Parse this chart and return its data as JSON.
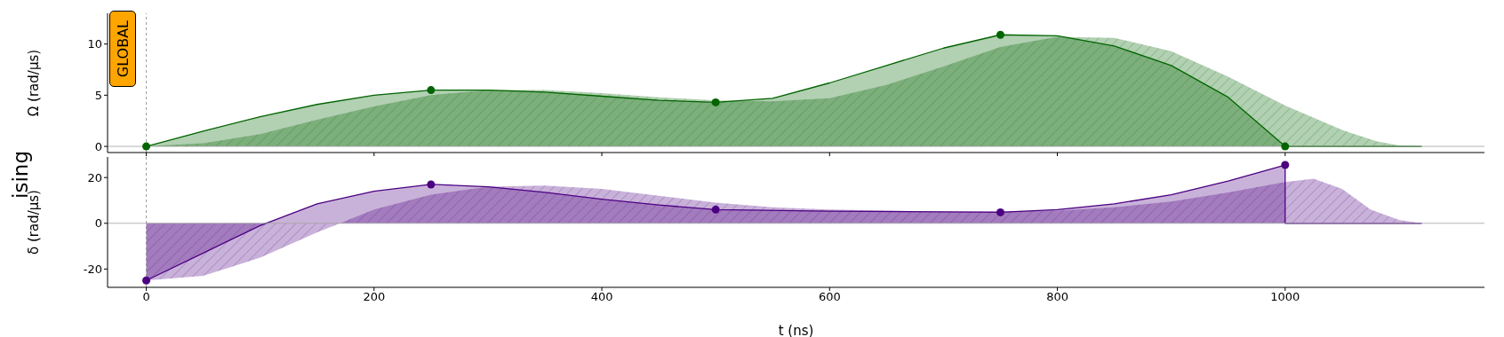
{
  "chart_data": [
    {
      "type": "area",
      "ylabel": "Ω (rad/µs)",
      "annotations": [
        "ising",
        "GLOBAL"
      ],
      "xlim": [
        -34,
        1175
      ],
      "xticks": [
        0,
        200,
        400,
        600,
        800,
        1000
      ],
      "ylim": [
        -0.6,
        13
      ],
      "yticks": [
        0,
        5,
        10
      ],
      "tick_labels": "y",
      "grid": false,
      "legend": false,
      "ref_lines": [
        {
          "axis": "x",
          "value": 0,
          "color": "#808080",
          "line_style": "dashed"
        },
        {
          "axis": "y",
          "value": 0,
          "color": "#a0a0a0",
          "line_style": "solid"
        }
      ],
      "series": [
        {
          "color": "#006400",
          "x": [
            0,
            50,
            100,
            150,
            200,
            250,
            300,
            350,
            400,
            450,
            500,
            550,
            600,
            650,
            700,
            750,
            800,
            850,
            900,
            950,
            1000,
            1120
          ],
          "values": [
            0,
            1.5,
            2.9,
            4.1,
            5.0,
            5.5,
            5.5,
            5.3,
            4.9,
            4.5,
            4.3,
            4.7,
            6.2,
            7.9,
            9.6,
            10.9,
            10.8,
            9.8,
            7.9,
            4.8,
            0,
            0
          ]
        },
        {
          "color": "#006400",
          "x": [
            0,
            50,
            100,
            150,
            200,
            250,
            300,
            350,
            400,
            450,
            500,
            550,
            600,
            650,
            700,
            750,
            800,
            850,
            900,
            950,
            1000,
            1050,
            1080,
            1100,
            1120
          ],
          "values": [
            0,
            0.3,
            1.2,
            2.6,
            3.9,
            5.0,
            5.5,
            5.5,
            5.2,
            4.8,
            4.5,
            4.4,
            4.7,
            6.0,
            7.8,
            9.7,
            10.7,
            10.6,
            9.3,
            6.8,
            4.0,
            1.6,
            0.5,
            0.1,
            0
          ]
        },
        {
          "type": "scatter",
          "color": "#006400",
          "marker": "circle",
          "x": [
            0,
            250,
            500,
            750,
            1000
          ],
          "values": [
            0,
            5.5,
            4.3,
            10.9,
            0
          ]
        }
      ]
    },
    {
      "type": "area",
      "ylabel": "δ (rad/µs)",
      "xlabel": "t (ns)",
      "xlim": [
        -34,
        1175
      ],
      "xticks": [
        0,
        200,
        400,
        600,
        800,
        1000
      ],
      "ylim": [
        -28,
        29
      ],
      "yticks": [
        -20,
        0,
        20
      ],
      "grid": false,
      "legend": false,
      "ref_lines": [
        {
          "axis": "x",
          "value": 0,
          "color": "#808080",
          "line_style": "dashed"
        },
        {
          "axis": "y",
          "value": 0,
          "color": "#a0a0a0",
          "line_style": "solid"
        }
      ],
      "series": [
        {
          "color": "#4b0082",
          "x": [
            0,
            50,
            100,
            150,
            200,
            250,
            300,
            350,
            400,
            450,
            500,
            600,
            700,
            750,
            800,
            850,
            900,
            950,
            1000,
            1000,
            1120
          ],
          "values": [
            -25,
            -13,
            -1,
            8.5,
            14,
            17,
            16,
            13.5,
            10.5,
            8,
            6,
            5.3,
            5,
            4.8,
            6,
            8.5,
            12.5,
            18.5,
            25.5,
            0,
            0
          ]
        },
        {
          "color": "#4b0082",
          "x": [
            0,
            50,
            100,
            150,
            200,
            250,
            300,
            350,
            400,
            450,
            500,
            550,
            600,
            700,
            800,
            850,
            900,
            950,
            1000,
            1025,
            1050,
            1075,
            1100,
            1120
          ],
          "values": [
            -25,
            -23,
            -15,
            -4,
            6,
            12.5,
            16,
            16.5,
            15,
            12,
            9,
            7,
            6,
            5.2,
            5.5,
            7,
            9.5,
            13.5,
            18,
            19.5,
            15,
            6,
            1.5,
            0
          ]
        },
        {
          "type": "scatter",
          "color": "#4b0082",
          "marker": "circle",
          "x": [
            0,
            250,
            500,
            750,
            1000
          ],
          "values": [
            -25,
            17,
            6,
            4.8,
            25.5
          ]
        }
      ]
    }
  ]
}
